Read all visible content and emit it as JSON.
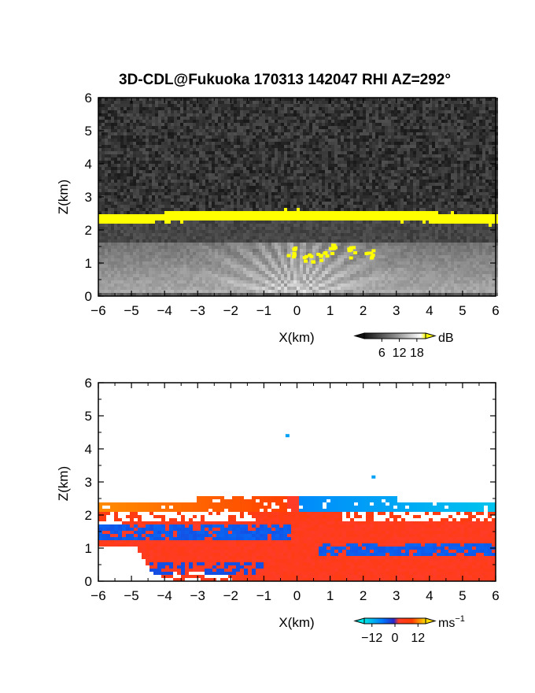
{
  "title": "3D-CDL@Fukuoka 170313 142047 RHI AZ=292°",
  "chart_data": [
    {
      "type": "heatmap",
      "name": "reflectivity",
      "xlabel": "X(km)",
      "ylabel": "Z(km)",
      "xlim": [
        -6,
        6
      ],
      "ylim": [
        0,
        6
      ],
      "xticks": [
        "−6",
        "−5",
        "−4",
        "−3",
        "−2",
        "−1",
        "0",
        "1",
        "2",
        "3",
        "4",
        "5",
        "6"
      ],
      "yticks": [
        "0",
        "1",
        "2",
        "3",
        "4",
        "5",
        "6"
      ],
      "colorbar": {
        "unit": "dB",
        "ticks": [
          "6",
          "12",
          "18"
        ],
        "range": [
          0,
          21
        ]
      },
      "features": {
        "noise_above_z_km": 2.6,
        "strong_layer": {
          "z_center_km": 2.3,
          "edge_z_km": 2.2,
          "thickness_km": 0.15
        },
        "boundary_layer_top_km": 1.9,
        "scatter_patches": [
          {
            "x": -0.2,
            "z": 1.4
          },
          {
            "x": 0.3,
            "z": 1.2
          },
          {
            "x": 0.7,
            "z": 1.25
          },
          {
            "x": 1.0,
            "z": 1.45
          },
          {
            "x": 1.6,
            "z": 1.35
          },
          {
            "x": 2.2,
            "z": 1.35
          }
        ]
      }
    },
    {
      "type": "heatmap",
      "name": "doppler velocity",
      "xlabel": "X(km)",
      "ylabel": "Z(km)",
      "xlim": [
        -6,
        6
      ],
      "ylim": [
        0,
        6
      ],
      "xticks": [
        "−6",
        "−5",
        "−4",
        "−3",
        "−2",
        "−1",
        "0",
        "1",
        "2",
        "3",
        "4",
        "5",
        "6"
      ],
      "yticks": [
        "0",
        "1",
        "2",
        "3",
        "4",
        "5",
        "6"
      ],
      "colorbar": {
        "unit_base": "ms",
        "unit_exp": "−1",
        "ticks": [
          "−12",
          "0",
          "12"
        ],
        "range": [
          -16,
          16
        ]
      },
      "features": {
        "upper_layer": {
          "z_bottom_km": 2.05,
          "z_top_km": 2.55,
          "left_value": 12,
          "right_value": -12
        },
        "negative_band": {
          "z_bottom_km": 1.2,
          "z_top_km": 1.75
        },
        "isolated_points": [
          {
            "x": -0.3,
            "z": 4.4
          },
          {
            "x": 2.3,
            "z": 3.15
          }
        ]
      }
    }
  ]
}
